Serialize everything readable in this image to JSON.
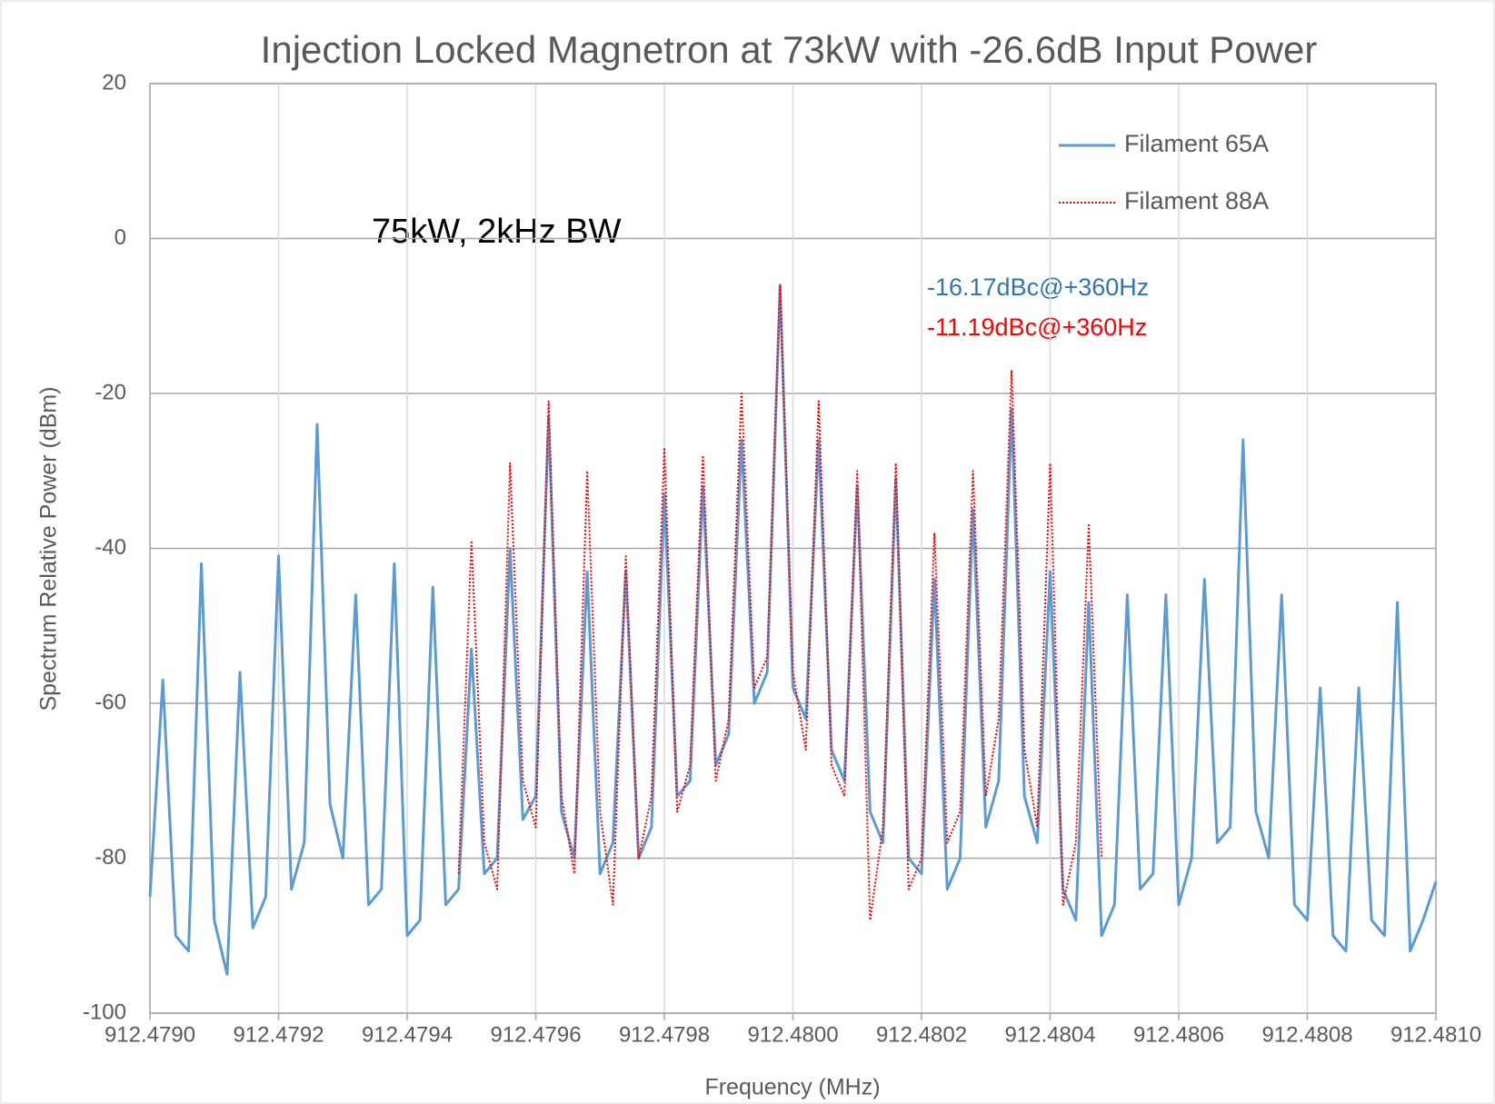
{
  "chart_data": {
    "type": "line",
    "title": "Injection Locked Magnetron at 73kW with -26.6dB Input Power",
    "xlabel": "Frequency (MHz)",
    "ylabel": "Spectrum Relative Power (dBm)",
    "annotations": [
      {
        "text": "75kW, 2kHz BW",
        "color": "#000000"
      },
      {
        "text": "-16.17dBc@+360Hz",
        "color": "#2e75b6"
      },
      {
        "text": "-11.19dBc@+360Hz",
        "color": "#ff0000"
      }
    ],
    "grid": true,
    "legend": "top-right",
    "xlim": [
      912.479,
      912.481
    ],
    "ylim": [
      -100,
      20
    ],
    "yticks": [
      -100,
      -80,
      -60,
      -40,
      -20,
      0,
      20
    ],
    "xticks": [
      {
        "value": 912.479,
        "label": "912.4790"
      },
      {
        "value": 912.4792,
        "label": "912.4792"
      },
      {
        "value": 912.4794,
        "label": "912.4794"
      },
      {
        "value": 912.4796,
        "label": "912.4796"
      },
      {
        "value": 912.4798,
        "label": "912.4798"
      },
      {
        "value": 912.48,
        "label": "912.4800"
      },
      {
        "value": 912.4802,
        "label": "912.4802"
      },
      {
        "value": 912.4804,
        "label": "912.4804"
      },
      {
        "value": 912.4806,
        "label": "912.4806"
      },
      {
        "value": 912.4808,
        "label": "912.4808"
      },
      {
        "value": 912.481,
        "label": "912.4810"
      }
    ],
    "x": [
      912.479,
      912.47902,
      912.47904,
      912.47906,
      912.47908,
      912.4791,
      912.47912,
      912.47914,
      912.47916,
      912.47918,
      912.4792,
      912.47922,
      912.47924,
      912.47926,
      912.47928,
      912.4793,
      912.47932,
      912.47934,
      912.47936,
      912.47938,
      912.4794,
      912.47942,
      912.47944,
      912.47946,
      912.47948,
      912.4795,
      912.47952,
      912.47954,
      912.47956,
      912.47958,
      912.4796,
      912.47962,
      912.47964,
      912.47966,
      912.47968,
      912.4797,
      912.47972,
      912.47974,
      912.47976,
      912.47978,
      912.4798,
      912.47982,
      912.47984,
      912.47986,
      912.47988,
      912.4799,
      912.47992,
      912.47994,
      912.47996,
      912.47998,
      912.48,
      912.48002,
      912.48004,
      912.48006,
      912.48008,
      912.4801,
      912.48012,
      912.48014,
      912.48016,
      912.48018,
      912.4802,
      912.48022,
      912.48024,
      912.48026,
      912.48028,
      912.4803,
      912.48032,
      912.48034,
      912.48036,
      912.48038,
      912.4804,
      912.48042,
      912.48044,
      912.48046,
      912.48048,
      912.4805,
      912.48052,
      912.48054,
      912.48056,
      912.48058,
      912.4806,
      912.48062,
      912.48064,
      912.48066,
      912.48068,
      912.4807,
      912.48072,
      912.48074,
      912.48076,
      912.48078,
      912.4808,
      912.48082,
      912.48084,
      912.48086,
      912.48088,
      912.4809,
      912.48092,
      912.48094,
      912.48096,
      912.48098,
      912.481
    ],
    "series": [
      {
        "name": "Filament 65A",
        "color": "#5b9bd5",
        "style": "solid",
        "values": [
          -85,
          -57,
          -90,
          -92,
          -42,
          -88,
          -95,
          -56,
          -89,
          -85,
          -41,
          -84,
          -78,
          -24,
          -73,
          -80,
          -46,
          -86,
          -84,
          -42,
          -90,
          -88,
          -45,
          -86,
          -84,
          -53,
          -82,
          -80,
          -40,
          -75,
          -72,
          -23,
          -74,
          -80,
          -43,
          -82,
          -78,
          -43,
          -80,
          -76,
          -33,
          -72,
          -70,
          -32,
          -68,
          -64,
          -26,
          -60,
          -56,
          -6,
          -58,
          -62,
          -26,
          -66,
          -70,
          -32,
          -74,
          -78,
          -31,
          -80,
          -82,
          -44,
          -84,
          -80,
          -35,
          -76,
          -70,
          -22,
          -72,
          -78,
          -43,
          -84,
          -88,
          -47,
          -90,
          -86,
          -46,
          -84,
          -82,
          -46,
          -86,
          -80,
          -44,
          -78,
          -76,
          -26,
          -74,
          -80,
          -46,
          -86,
          -88,
          -58,
          -90,
          -92,
          -58,
          -88,
          -90,
          -47,
          -92,
          -88,
          -83
        ]
      },
      {
        "name": "Filament 88A",
        "color": "#ff0000",
        "style": "dotted",
        "values": [
          null,
          null,
          null,
          null,
          null,
          null,
          null,
          null,
          null,
          null,
          null,
          null,
          null,
          null,
          null,
          null,
          null,
          null,
          null,
          null,
          null,
          null,
          null,
          null,
          -82,
          -39,
          -78,
          -84,
          -29,
          -70,
          -76,
          -21,
          -72,
          -82,
          -30,
          -74,
          -86,
          -41,
          -80,
          -72,
          -27,
          -74,
          -68,
          -28,
          -70,
          -62,
          -20,
          -58,
          -54,
          -6,
          -56,
          -66,
          -21,
          -68,
          -72,
          -30,
          -88,
          -76,
          -29,
          -84,
          -80,
          -38,
          -78,
          -74,
          -30,
          -72,
          -62,
          -17,
          -66,
          -76,
          -29,
          -86,
          -78,
          -37,
          -80,
          null,
          null,
          null,
          null,
          null,
          null,
          null,
          null,
          null,
          null,
          null,
          null,
          null,
          null,
          null,
          null,
          null,
          null,
          null,
          null,
          null,
          null,
          null,
          null,
          null,
          null
        ]
      }
    ]
  }
}
